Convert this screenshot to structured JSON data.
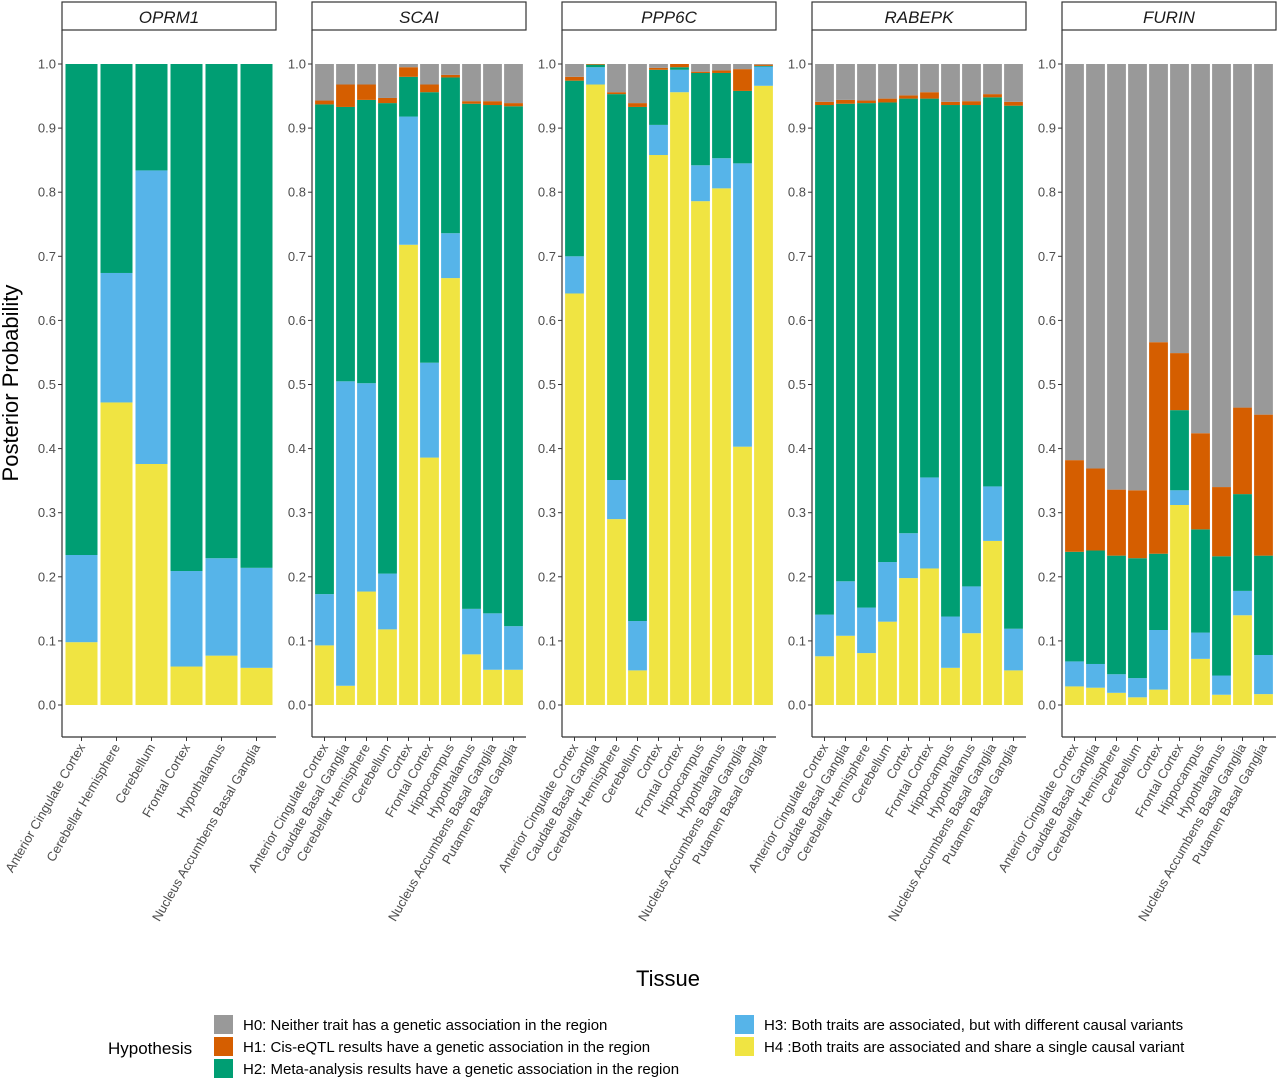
{
  "chart_data": {
    "type": "bar",
    "stacked": true,
    "ylabel": "Posterior Probability",
    "xlabel": "Tissue",
    "ylim": [
      0,
      1
    ],
    "yticks": [
      "0.0",
      "0.1",
      "0.2",
      "0.3",
      "0.4",
      "0.5",
      "0.6",
      "0.7",
      "0.8",
      "0.9",
      "1.0"
    ],
    "legend": {
      "title": "Hypothesis",
      "placement": "bottom",
      "items": [
        {
          "key": "H0",
          "label": "H0: Neither trait has a genetic association in the region",
          "color": "#999999"
        },
        {
          "key": "H1",
          "label": "H1: Cis-eQTL results have a genetic association in the region",
          "color": "#D55E00"
        },
        {
          "key": "H2",
          "label": "H2: Meta-analysis results have a genetic association in the region",
          "color": "#009E73"
        },
        {
          "key": "H3",
          "label": "H3: Both traits are associated, but with different causal variants",
          "color": "#56B4E9"
        },
        {
          "key": "H4",
          "label": "H4 :Both traits are associated and share a single causal variant",
          "color": "#F0E442"
        }
      ]
    },
    "stack_order_bottom_to_top": [
      "H4",
      "H3",
      "H2",
      "H1",
      "H0"
    ],
    "panels": [
      {
        "gene": "OPRM1",
        "categories": [
          "Anterior Cingulate Cortex",
          "Cerebellar Hemisphere",
          "Cerebellum",
          "Frontal Cortex",
          "Hypothalamus",
          "Nucleus Accumbens Basal Ganglia"
        ],
        "series": {
          "H4": [
            0.098,
            0.472,
            0.376,
            0.06,
            0.077,
            0.058
          ],
          "H3": [
            0.136,
            0.202,
            0.458,
            0.149,
            0.152,
            0.156
          ],
          "H2": [
            0.766,
            0.326,
            0.166,
            0.791,
            0.771,
            0.786
          ],
          "H1": [
            0,
            0,
            0,
            0,
            0,
            0
          ],
          "H0": [
            0,
            0,
            0,
            0,
            0,
            0
          ]
        }
      },
      {
        "gene": "SCAI",
        "categories": [
          "Anterior Cingulate Cortex",
          "Caudate Basal Ganglia",
          "Cerebellar Hemisphere",
          "Cerebellum",
          "Cortex",
          "Frontal Cortex",
          "Hippocampus",
          "Hypothalamus",
          "Nucleus Accumbens Basal Ganglia",
          "Putamen Basal Ganglia"
        ],
        "series": {
          "H4": [
            0.093,
            0.03,
            0.177,
            0.118,
            0.718,
            0.386,
            0.666,
            0.079,
            0.055,
            0.055
          ],
          "H3": [
            0.08,
            0.475,
            0.325,
            0.087,
            0.2,
            0.148,
            0.07,
            0.071,
            0.088,
            0.068
          ],
          "H2": [
            0.764,
            0.428,
            0.442,
            0.734,
            0.062,
            0.422,
            0.243,
            0.788,
            0.793,
            0.811
          ],
          "H1": [
            0.006,
            0.035,
            0.024,
            0.008,
            0.015,
            0.012,
            0.004,
            0.004,
            0.006,
            0.005
          ],
          "H0": [
            0.057,
            0.032,
            0.032,
            0.053,
            0.005,
            0.032,
            0.017,
            0.058,
            0.058,
            0.061
          ]
        }
      },
      {
        "gene": "PPP6C",
        "categories": [
          "Anterior Cingulate Cortex",
          "Caudate Basal Ganglia",
          "Cerebellar Hemisphere",
          "Cerebellum",
          "Cortex",
          "Frontal Cortex",
          "Hippocampus",
          "Hypothalamus",
          "Nucleus Accumbens Basal Ganglia",
          "Putamen Basal Ganglia"
        ],
        "series": {
          "H4": [
            0.642,
            0.968,
            0.29,
            0.054,
            0.858,
            0.956,
            0.786,
            0.806,
            0.403,
            0.966
          ],
          "H3": [
            0.058,
            0.027,
            0.061,
            0.077,
            0.047,
            0.035,
            0.056,
            0.047,
            0.442,
            0.03
          ],
          "H2": [
            0.274,
            0.004,
            0.602,
            0.802,
            0.086,
            0.004,
            0.144,
            0.133,
            0.113,
            0.001
          ],
          "H1": [
            0.006,
            0.001,
            0.003,
            0.006,
            0.003,
            0.005,
            0.002,
            0.004,
            0.034,
            0.002
          ],
          "H0": [
            0.02,
            0.0,
            0.044,
            0.061,
            0.006,
            0.0,
            0.012,
            0.01,
            0.008,
            0.001
          ]
        }
      },
      {
        "gene": "RABEPK",
        "categories": [
          "Anterior Cingulate Cortex",
          "Caudate Basal Ganglia",
          "Cerebellar Hemisphere",
          "Cerebellum",
          "Cortex",
          "Frontal Cortex",
          "Hippocampus",
          "Hypothalamus",
          "Nucleus Accumbens Basal Ganglia",
          "Putamen Basal Ganglia"
        ],
        "series": {
          "H4": [
            0.076,
            0.108,
            0.081,
            0.13,
            0.198,
            0.213,
            0.058,
            0.112,
            0.256,
            0.054
          ],
          "H3": [
            0.065,
            0.085,
            0.071,
            0.093,
            0.07,
            0.142,
            0.08,
            0.073,
            0.085,
            0.065
          ],
          "H2": [
            0.795,
            0.745,
            0.787,
            0.717,
            0.678,
            0.591,
            0.798,
            0.751,
            0.607,
            0.816
          ],
          "H1": [
            0.005,
            0.006,
            0.004,
            0.006,
            0.005,
            0.01,
            0.005,
            0.006,
            0.005,
            0.006
          ],
          "H0": [
            0.059,
            0.056,
            0.057,
            0.054,
            0.049,
            0.044,
            0.059,
            0.058,
            0.047,
            0.059
          ]
        }
      },
      {
        "gene": "FURIN",
        "categories": [
          "Anterior Cingulate Cortex",
          "Caudate Basal Ganglia",
          "Cerebellar Hemisphere",
          "Cerebellum",
          "Cortex",
          "Frontal Cortex",
          "Hippocampus",
          "Hypothalamus",
          "Nucleus Accumbens Basal Ganglia",
          "Putamen Basal Ganglia"
        ],
        "series": {
          "H4": [
            0.029,
            0.027,
            0.019,
            0.012,
            0.024,
            0.312,
            0.072,
            0.016,
            0.14,
            0.017
          ],
          "H3": [
            0.039,
            0.037,
            0.029,
            0.03,
            0.093,
            0.023,
            0.041,
            0.03,
            0.038,
            0.061
          ],
          "H2": [
            0.171,
            0.177,
            0.185,
            0.187,
            0.119,
            0.125,
            0.161,
            0.186,
            0.151,
            0.155
          ],
          "H1": [
            0.143,
            0.128,
            0.103,
            0.106,
            0.33,
            0.089,
            0.15,
            0.108,
            0.135,
            0.22
          ],
          "H0": [
            0.618,
            0.631,
            0.664,
            0.665,
            0.434,
            0.451,
            0.576,
            0.66,
            0.536,
            0.547
          ]
        }
      }
    ]
  }
}
